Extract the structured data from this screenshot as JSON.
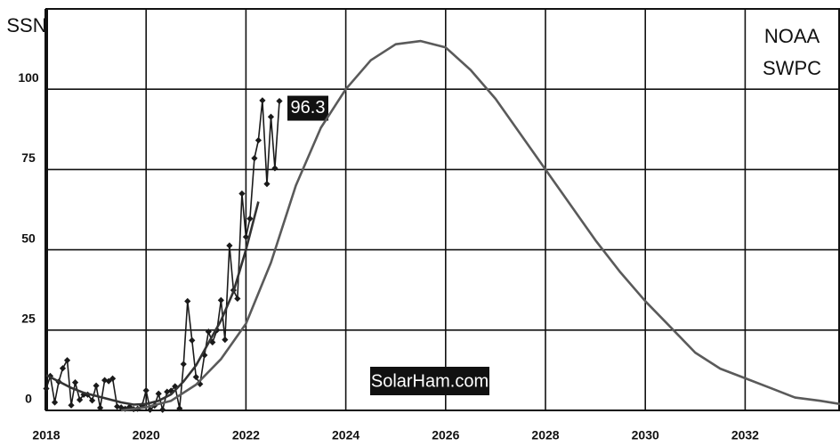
{
  "chart_data": {
    "type": "line",
    "ylabel": "SSN",
    "source_lines": [
      "NOAA",
      "SWPC"
    ],
    "watermark": "SolarHam.com",
    "xlim": [
      2018,
      2033.9
    ],
    "ylim": [
      0,
      125
    ],
    "xticks": [
      2018,
      2020,
      2022,
      2024,
      2026,
      2028,
      2030,
      2032
    ],
    "yticks": [
      0,
      25,
      50,
      75,
      100
    ],
    "grid": true,
    "series": [
      {
        "color": "#1a1a1a",
        "markers": true,
        "x": [
          2018.0,
          2018.08,
          2018.17,
          2018.25,
          2018.33,
          2018.42,
          2018.5,
          2018.58,
          2018.67,
          2018.75,
          2018.83,
          2018.92,
          2019.0,
          2019.08,
          2019.17,
          2019.25,
          2019.33,
          2019.42,
          2019.5,
          2019.58,
          2019.67,
          2019.75,
          2019.83,
          2019.92,
          2020.0,
          2020.08,
          2020.17,
          2020.25,
          2020.33,
          2020.42,
          2020.5,
          2020.58,
          2020.67,
          2020.75,
          2020.83,
          2020.92,
          2021.0,
          2021.08,
          2021.17,
          2021.25,
          2021.33,
          2021.42,
          2021.5,
          2021.58,
          2021.67,
          2021.75,
          2021.83,
          2021.92,
          2022.0,
          2022.08,
          2022.17,
          2022.25,
          2022.33,
          2022.42,
          2022.5,
          2022.58,
          2022.67
        ],
        "values": [
          6.8,
          10.7,
          2.5,
          8.9,
          13.1,
          15.6,
          1.6,
          8.7,
          3.3,
          4.9,
          4.9,
          3.1,
          7.7,
          0.8,
          9.4,
          9.1,
          9.9,
          1.2,
          0.9,
          0.5,
          1.1,
          0.4,
          0.5,
          1.5,
          6.2,
          0.2,
          1.5,
          5.2,
          0.2,
          5.8,
          6.1,
          7.5,
          0.6,
          14.4,
          34.0,
          21.8,
          10.4,
          8.2,
          17.2,
          24.5,
          21.2,
          25.0,
          34.3,
          22.0,
          51.3,
          37.4,
          34.8,
          67.5,
          54.0,
          59.7,
          78.5,
          84.1,
          96.5,
          70.5,
          91.4,
          75.4,
          96.3
        ]
      },
      {
        "color": "#333333",
        "markers": false,
        "x": [
          2018,
          2018.25,
          2018.5,
          2018.75,
          2019,
          2019.25,
          2019.5,
          2019.75,
          2020,
          2020.25,
          2020.5,
          2020.75,
          2021,
          2021.25,
          2021.5,
          2021.75,
          2022,
          2022.25
        ],
        "values": [
          11,
          9,
          7,
          5.5,
          4.5,
          3.5,
          2.5,
          1.8,
          2,
          3,
          5,
          9,
          14,
          21,
          28,
          37,
          50,
          65
        ]
      },
      {
        "color": "#5a5a5a",
        "markers": false,
        "x": [
          2019.5,
          2020,
          2020.5,
          2021,
          2021.5,
          2022,
          2022.5,
          2023,
          2023.5,
          2024,
          2024.5,
          2025,
          2025.5,
          2026,
          2026.5,
          2027,
          2027.5,
          2028,
          2028.5,
          2029,
          2029.5,
          2030,
          2030.5,
          2031,
          2031.5,
          2032,
          2032.5,
          2033,
          2033.5,
          2033.9
        ],
        "values": [
          0,
          1,
          3,
          8,
          16,
          27,
          46,
          70,
          88,
          100,
          109,
          114,
          115,
          113,
          106,
          97,
          86,
          75,
          64,
          53,
          43,
          34,
          26,
          18,
          13,
          10,
          7,
          4,
          3,
          2
        ]
      }
    ]
  }
}
